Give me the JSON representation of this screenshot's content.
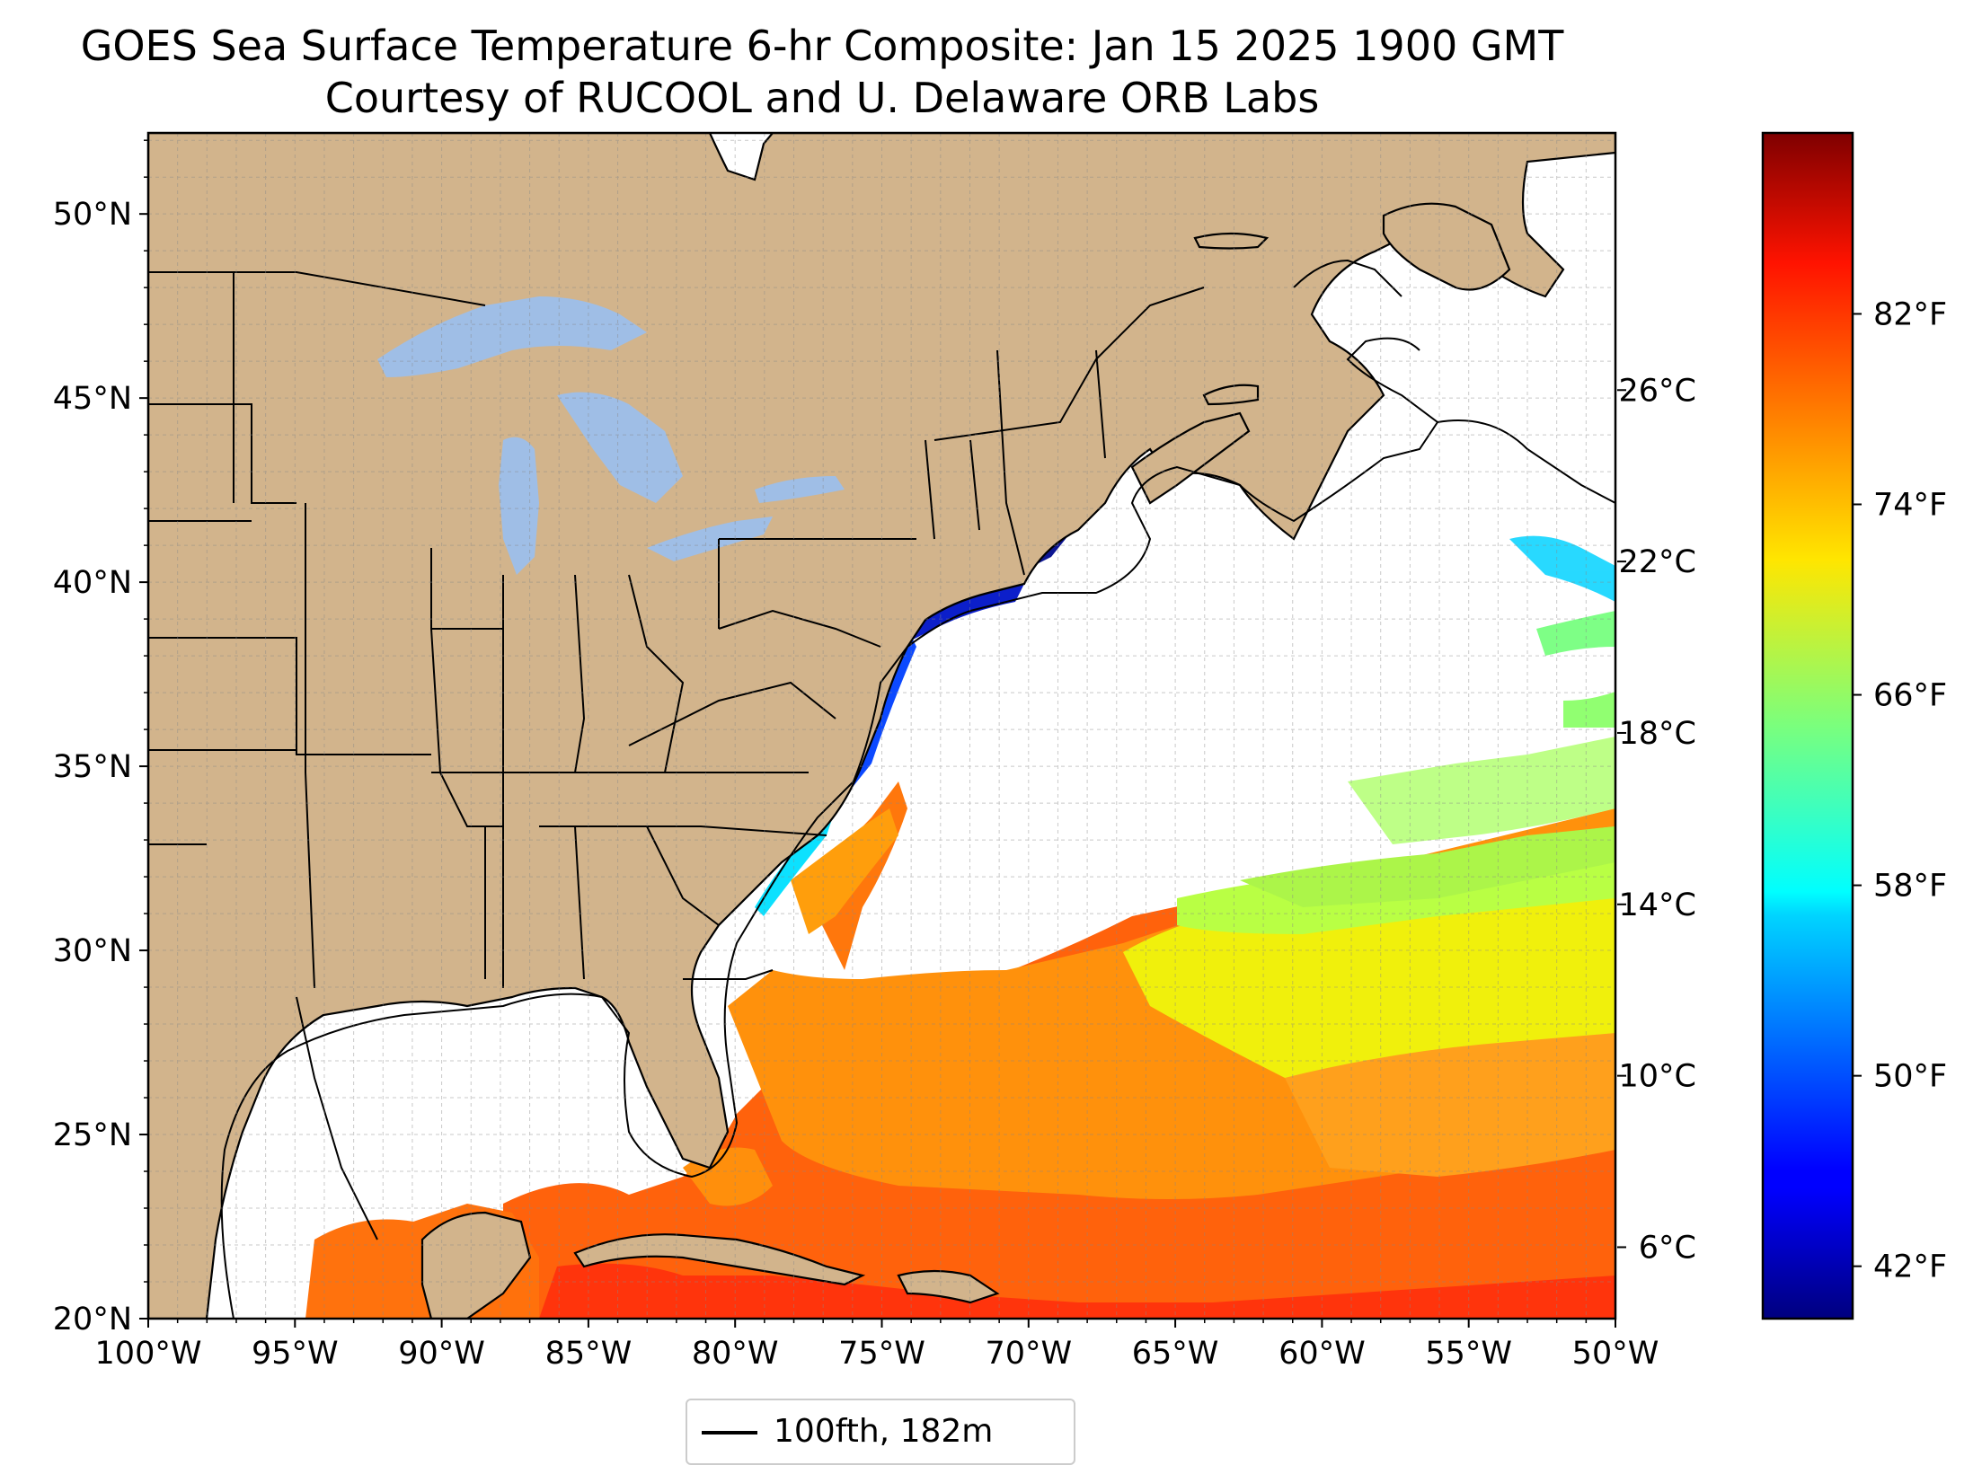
{
  "title": {
    "line1": "GOES Sea Surface Temperature 6-hr Composite: Jan 15 2025 1900 GMT",
    "line2": "Courtesy of RUCOOL and U. Delaware ORB Labs"
  },
  "map": {
    "extent": {
      "lon": [
        -100,
        -50
      ],
      "lat": [
        20,
        52.2
      ]
    },
    "lon_ticks": [
      {
        "value": -100,
        "label": "100°W"
      },
      {
        "value": -95,
        "label": "95°W"
      },
      {
        "value": -90,
        "label": "90°W"
      },
      {
        "value": -85,
        "label": "85°W"
      },
      {
        "value": -80,
        "label": "80°W"
      },
      {
        "value": -75,
        "label": "75°W"
      },
      {
        "value": -70,
        "label": "70°W"
      },
      {
        "value": -65,
        "label": "65°W"
      },
      {
        "value": -60,
        "label": "60°W"
      },
      {
        "value": -55,
        "label": "55°W"
      },
      {
        "value": -50,
        "label": "50°W"
      }
    ],
    "lat_ticks": [
      {
        "value": 20,
        "label": "20°N"
      },
      {
        "value": 25,
        "label": "25°N"
      },
      {
        "value": 30,
        "label": "30°N"
      },
      {
        "value": 35,
        "label": "35°N"
      },
      {
        "value": 40,
        "label": "40°N"
      },
      {
        "value": 45,
        "label": "45°N"
      },
      {
        "value": 50,
        "label": "50°N"
      }
    ],
    "grid": true,
    "colors": {
      "land": "#d2b48c",
      "lakes": "#9fbee6",
      "ocean": "#ffffff",
      "border": "#000000"
    }
  },
  "colorbar": {
    "colormap": "jet",
    "range_f": [
      39.8,
      89.6
    ],
    "celsius_ticks": [
      {
        "value": 6,
        "label": "6°C"
      },
      {
        "value": 10,
        "label": "10°C"
      },
      {
        "value": 14,
        "label": "14°C"
      },
      {
        "value": 18,
        "label": "18°C"
      },
      {
        "value": 22,
        "label": "22°C"
      },
      {
        "value": 26,
        "label": "26°C"
      }
    ],
    "fahrenheit_ticks": [
      {
        "value": 42,
        "label": "42°F"
      },
      {
        "value": 50,
        "label": "50°F"
      },
      {
        "value": 58,
        "label": "58°F"
      },
      {
        "value": 66,
        "label": "66°F"
      },
      {
        "value": 74,
        "label": "74°F"
      },
      {
        "value": 82,
        "label": "82°F"
      }
    ]
  },
  "legend": {
    "label": "100fth, 182m"
  }
}
